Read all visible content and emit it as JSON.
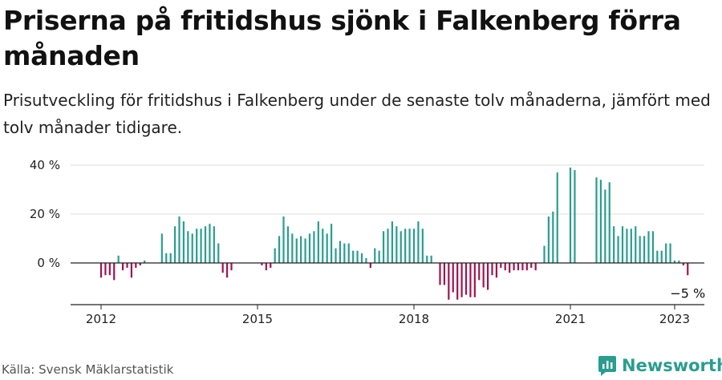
{
  "header": {
    "title": "Priserna på fritidshus sjönk i Falkenberg förra månaden",
    "subtitle": "Prisutveckling för fritidshus i Falkenberg under de senaste tolv månaderna, jämfört med tolv månader tidigare."
  },
  "footer": {
    "source": "Källa: Svensk Mäklarstatistik",
    "brand": "Newsworthy"
  },
  "colors": {
    "positive": "#2a9d8f",
    "negative": "#a0134f",
    "grid": "#dddddd",
    "axis": "#222222",
    "brand": "#2a9d8f"
  },
  "chart_data": {
    "type": "bar",
    "title": "",
    "xlabel": "",
    "ylabel": "",
    "ylim": [
      -18,
      42
    ],
    "y_ticks": [
      {
        "value": 40,
        "label": "40 %"
      },
      {
        "value": 20,
        "label": "20 %"
      },
      {
        "value": 0,
        "label": "0 %"
      }
    ],
    "x_ticks": [
      {
        "value": 2012,
        "label": "2012"
      },
      {
        "value": 2015,
        "label": "2015"
      },
      {
        "value": 2018,
        "label": "2018"
      },
      {
        "value": 2021,
        "label": "2021"
      },
      {
        "value": 2023,
        "label": "2023"
      }
    ],
    "x_start": 2012,
    "annotation": "−5 %",
    "grid": true,
    "series": [
      {
        "values": [
          -6,
          -5,
          -5,
          -7,
          3,
          -3,
          -2,
          -6,
          -2,
          -1,
          1,
          null,
          null,
          null,
          12,
          4,
          4,
          15,
          19,
          17,
          13,
          12,
          14,
          14,
          15,
          16,
          15,
          8,
          -4,
          -6,
          -3,
          null,
          null,
          null,
          null,
          null,
          null,
          -1,
          -3,
          -2,
          6,
          11,
          19,
          15,
          12,
          10,
          11,
          10,
          12,
          13,
          17,
          14,
          12,
          16,
          6,
          9,
          8,
          8,
          5,
          5,
          4,
          2,
          -2,
          6,
          5,
          13,
          14,
          17,
          15,
          13,
          14,
          14,
          14,
          17,
          14,
          3,
          3,
          null,
          -9,
          -9,
          -15,
          -12,
          -15,
          -14,
          -13,
          -14,
          -14,
          -7,
          -10,
          -11,
          -5,
          -6,
          -2,
          -3,
          -4,
          -3,
          -3,
          -3,
          -3,
          -2,
          -3,
          null,
          7,
          19,
          21,
          37,
          null,
          null,
          39,
          38,
          null,
          null,
          null,
          null,
          35,
          34,
          30,
          33,
          15,
          11,
          15,
          14,
          14,
          15,
          11,
          11,
          13,
          13,
          5,
          5,
          8,
          8,
          1,
          1,
          -1,
          -5
        ]
      }
    ]
  }
}
